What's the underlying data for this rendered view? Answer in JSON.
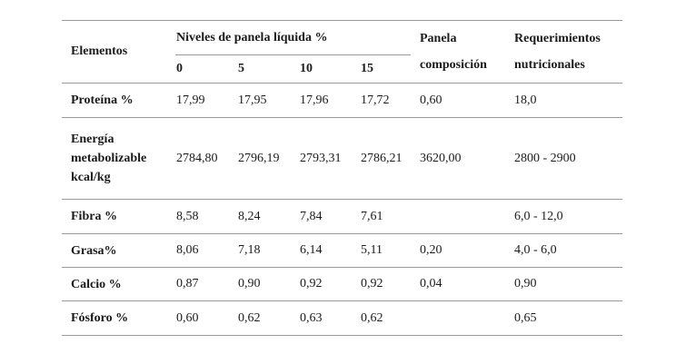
{
  "table": {
    "header": {
      "elementos": "Elementos",
      "niveles_group": "Niveles de panela líquida %",
      "levels": [
        "0",
        "5",
        "10",
        "15"
      ],
      "panela": "Panela composición",
      "requerimientos": "Requerimientos nutricionales"
    },
    "rows": [
      {
        "label": "Proteína %",
        "values": [
          "17,99",
          "17,95",
          "17,96",
          "17,72"
        ],
        "panela": "0,60",
        "req": "18,0"
      },
      {
        "label": "Energía metabolizable kcal/kg",
        "values": [
          "2784,80",
          "2796,19",
          "2793,31",
          "2786,21"
        ],
        "panela": "3620,00",
        "req": "2800 - 2900"
      },
      {
        "label": "Fibra %",
        "values": [
          "8,58",
          "8,24",
          "7,84",
          "7,61"
        ],
        "panela": "",
        "req": "6,0 - 12,0"
      },
      {
        "label": "Grasa%",
        "values": [
          "8,06",
          "7,18",
          "6,14",
          "5,11"
        ],
        "panela": "0,20",
        "req": "4,0 - 6,0"
      },
      {
        "label": "Calcio %",
        "values": [
          "0,87",
          "0,90",
          "0,92",
          "0,92"
        ],
        "panela": "0,04",
        "req": "0,90"
      },
      {
        "label": "Fósforo %",
        "values": [
          "0,60",
          "0,62",
          "0,63",
          "0,62"
        ],
        "panela": "",
        "req": "0,65"
      }
    ]
  }
}
